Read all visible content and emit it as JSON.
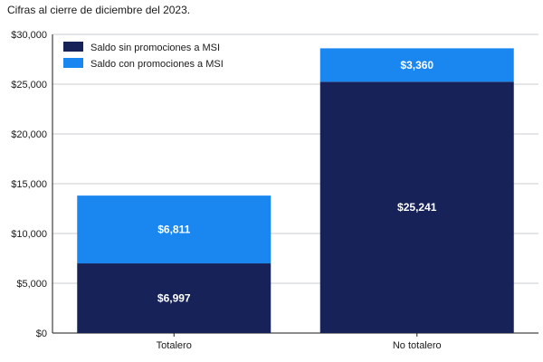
{
  "chart_data": {
    "type": "bar",
    "stacked": true,
    "title": "",
    "subtitle": "Cifras al cierre de diciembre del 2023.",
    "categories": [
      "Totalero",
      "No totalero"
    ],
    "series": [
      {
        "name": "Saldo sin promociones a MSI",
        "values": [
          6997,
          25241
        ],
        "labels": [
          "$6,997",
          "$25,241"
        ],
        "color": "#172358"
      },
      {
        "name": "Saldo con promociones a MSI",
        "values": [
          6811,
          3360
        ],
        "labels": [
          "$6,811",
          "$3,360"
        ],
        "color": "#1a86f0"
      }
    ],
    "ylim": [
      0,
      30000
    ],
    "yticks": [
      0,
      5000,
      10000,
      15000,
      20000,
      25000,
      30000
    ],
    "ytick_labels": [
      "$0",
      "$5,000",
      "$10,000",
      "$15,000",
      "$20,000",
      "$25,000",
      "$30,000"
    ],
    "xlabel": "",
    "ylabel": "",
    "grid": true,
    "legend_position": "top-left"
  }
}
